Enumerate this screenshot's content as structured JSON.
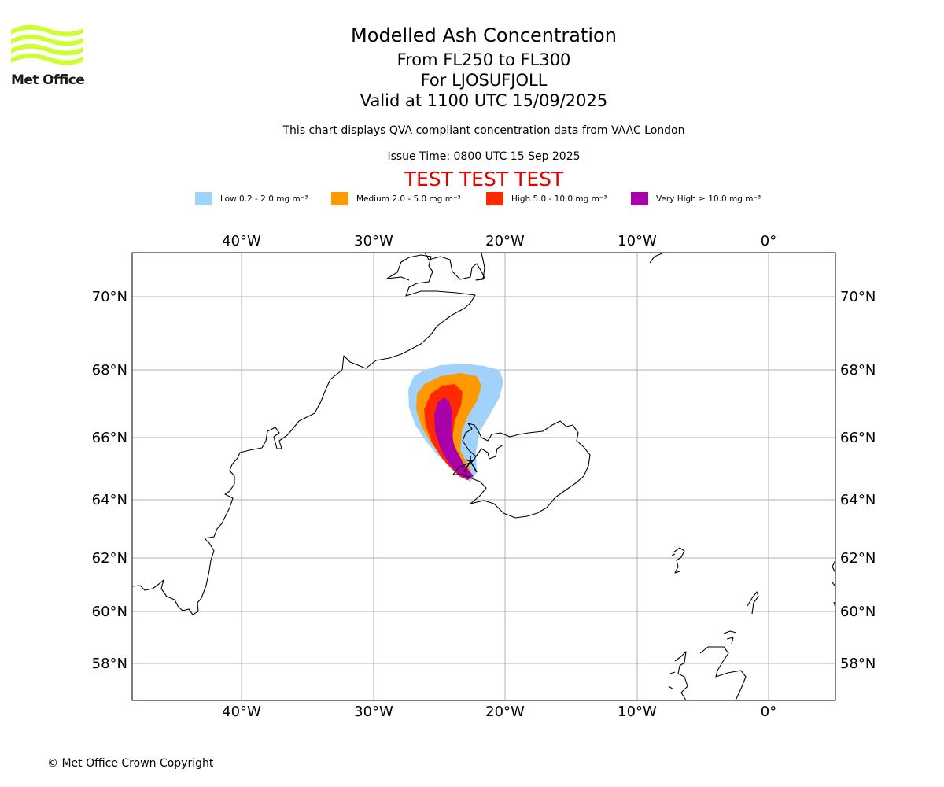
{
  "brand": {
    "logo_text": "Met Office",
    "logo_color": "#ccff33"
  },
  "header": {
    "title": "Modelled Ash Concentration",
    "flight_levels": "From FL250 to FL300",
    "volcano": "For LJOSUFJOLL",
    "valid_time": "Valid at 1100 UTC 15/09/2025",
    "description": "This chart displays QVA compliant concentration data from VAAC London",
    "issue_time": "Issue Time: 0800 UTC 15 Sep 2025",
    "test_banner": "TEST TEST TEST",
    "test_banner_color": "#e60000"
  },
  "legend": [
    {
      "label": "Low 0.2 - 2.0 mg m⁻³",
      "color": "#a0d2fa"
    },
    {
      "label": "Medium 2.0 - 5.0 mg m⁻³",
      "color": "#ff9900"
    },
    {
      "label": "High 5.0 - 10.0 mg m⁻³",
      "color": "#ff2a00"
    },
    {
      "label": "Very High ≥ 10.0 mg m⁻³",
      "color": "#aa00aa"
    }
  ],
  "map": {
    "longitude_ticks": [
      "40°W",
      "30°W",
      "20°W",
      "10°W",
      "0°"
    ],
    "latitude_ticks": [
      "70°N",
      "68°N",
      "66°N",
      "64°N",
      "62°N",
      "60°N",
      "58°N"
    ],
    "volcano_marker": "volcano-symbol"
  },
  "footer": {
    "copyright": "© Met Office Crown Copyright"
  }
}
